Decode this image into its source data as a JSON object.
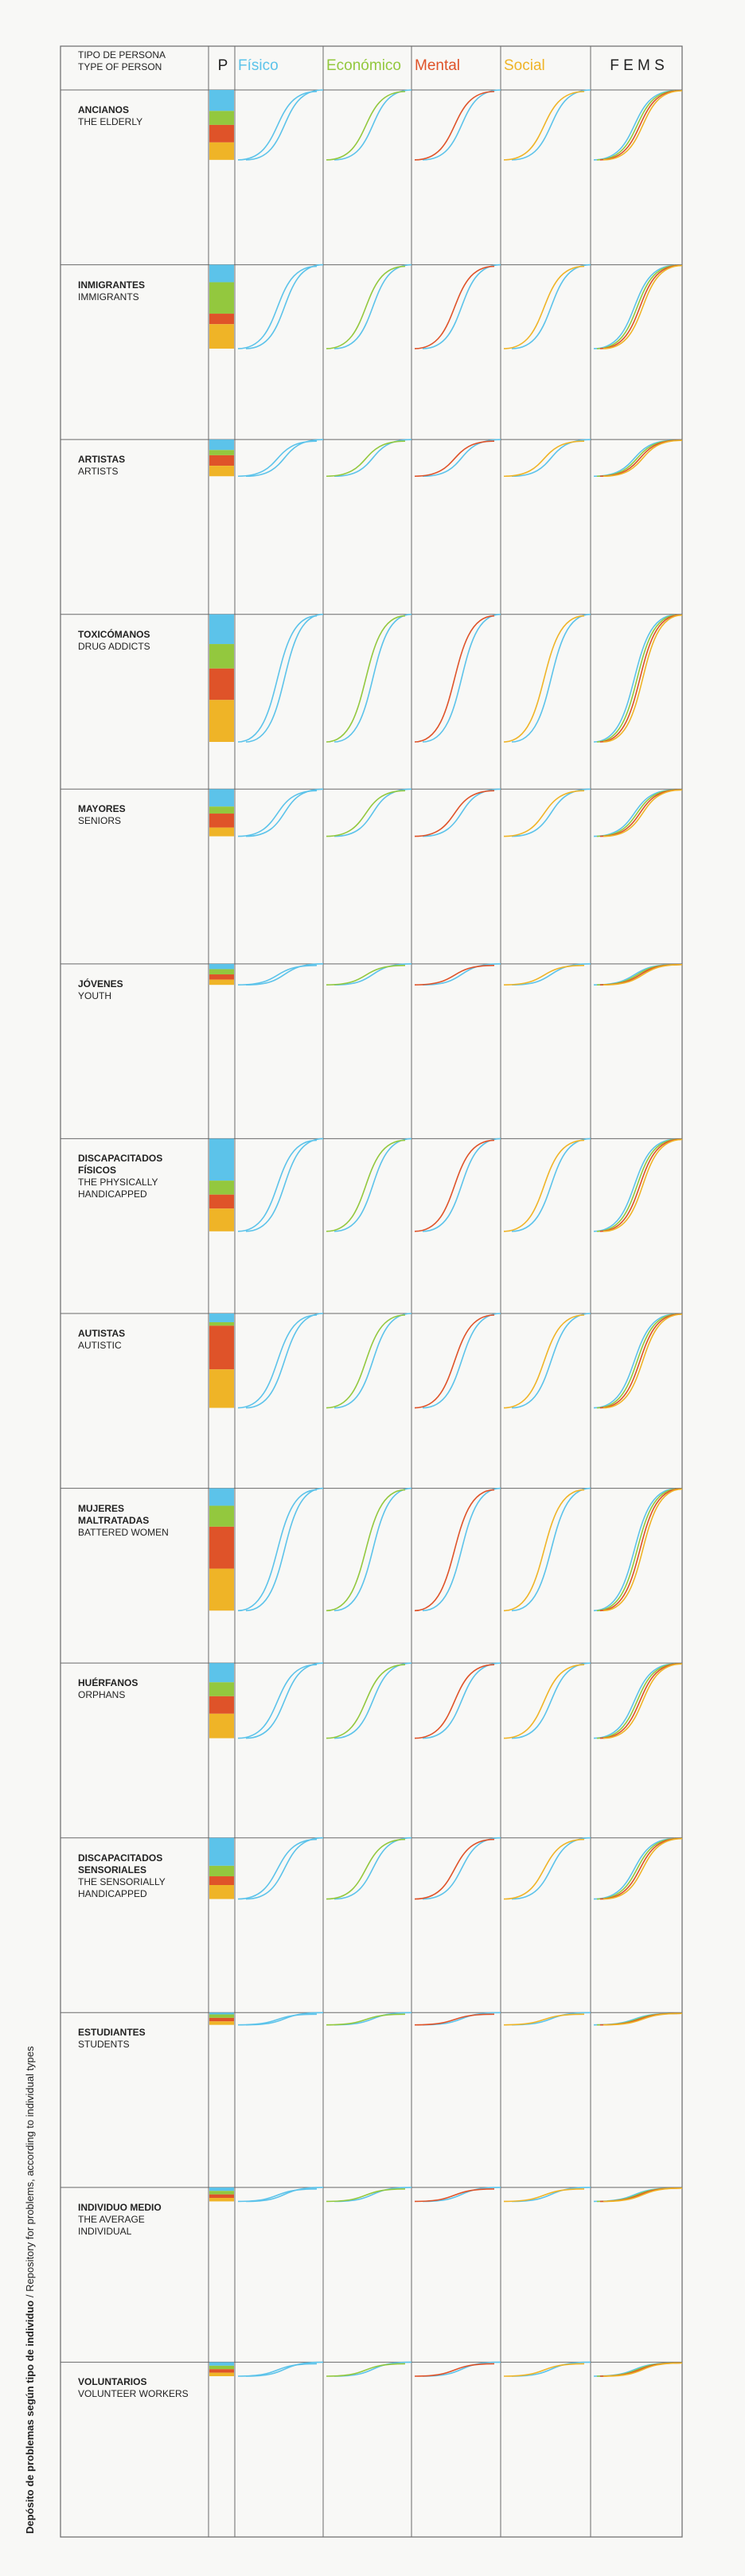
{
  "side_title": {
    "bold": "Depósito de problemas según tipo de individuo",
    "rest": "/ Repository for problems, according to individual types"
  },
  "table": {
    "header": {
      "type_es": "TIPO DE PERSONA",
      "type_en": "TYPE OF PERSON",
      "p": "P"
    },
    "columns": [
      {
        "name": "Físico",
        "color": "#5cc3ea"
      },
      {
        "name": "Económico",
        "color": "#93c83e"
      },
      {
        "name": "Mental",
        "color": "#df5329"
      },
      {
        "name": "Social",
        "color": "#efb427"
      },
      {
        "name": "F E M S",
        "color": "#222222"
      }
    ],
    "rows": [
      {
        "es": "ANCIANOS",
        "en": "THE ELDERLY",
        "levels": [
          12,
          8,
          10,
          10
        ]
      },
      {
        "es": "INMIGRANTES",
        "en": "IMMIGRANTS",
        "levels": [
          10,
          18,
          6,
          14
        ]
      },
      {
        "es": "ARTISTAS",
        "en": "ARTISTS",
        "levels": [
          6,
          3,
          6,
          6
        ]
      },
      {
        "es": "TOXICÓMANOS",
        "en": "DRUG ADDICTS",
        "levels": [
          17,
          14,
          18,
          24
        ]
      },
      {
        "es": "MAYORES",
        "en": "SENIORS",
        "levels": [
          10,
          4,
          8,
          5
        ]
      },
      {
        "es": "JÓVENES",
        "en": "YOUTH",
        "levels": [
          3,
          3,
          3,
          3
        ]
      },
      {
        "es": "DISCAPACITADOS FÍSICOS",
        "en": "THE PHYSICALLY HANDICAPPED",
        "levels": [
          24,
          8,
          8,
          13
        ]
      },
      {
        "es": "AUTISTAS",
        "en": "AUTISTIC",
        "levels": [
          5,
          2,
          25,
          22
        ]
      },
      {
        "es": "MUJERES MALTRATADAS",
        "en": "BATTERED WOMEN",
        "levels": [
          10,
          12,
          24,
          24
        ]
      },
      {
        "es": "HUÉRFANOS",
        "en": "ORPHANS",
        "levels": [
          11,
          8,
          10,
          14
        ]
      },
      {
        "es": "DISCAPACITADOS SENSORIALES",
        "en": "THE SENSORIALLY HANDICAPPED",
        "levels": [
          16,
          6,
          5,
          8
        ]
      },
      {
        "es": "ESTUDIANTES",
        "en": "STUDENTS",
        "levels": [
          1,
          2,
          2,
          2
        ]
      },
      {
        "es": "INDIVIDUO MEDIO",
        "en": "THE AVERAGE INDIVIDUAL",
        "levels": [
          2,
          2,
          2,
          2
        ]
      },
      {
        "es": "VOLUNTARIOS",
        "en": "VOLUNTEER WORKERS",
        "levels": [
          2,
          2,
          2,
          2
        ]
      }
    ]
  }
}
